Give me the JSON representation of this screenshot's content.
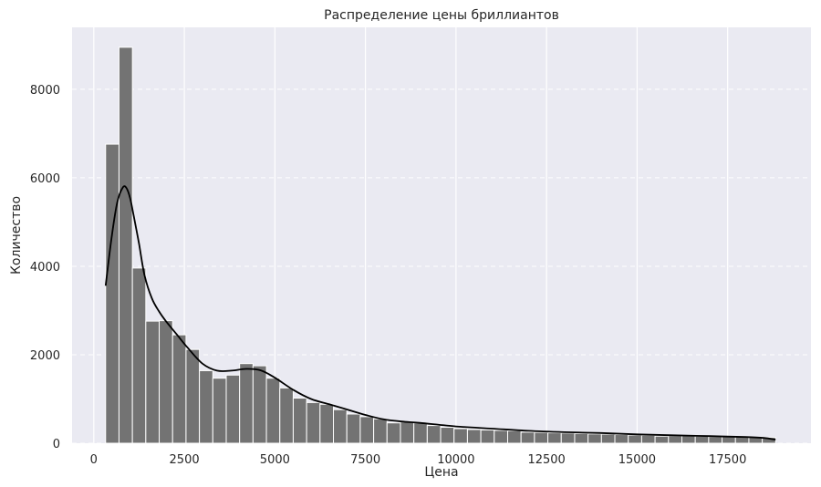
{
  "chart_data": {
    "type": "histogram",
    "title": "Распределение цены бриллиантов",
    "xlabel": "Цена",
    "ylabel": "Количество",
    "xlim": [
      -600,
      19800
    ],
    "ylim": [
      0,
      9400
    ],
    "xticks": [
      0,
      2500,
      5000,
      7500,
      10000,
      12500,
      15000,
      17500
    ],
    "yticks": [
      0,
      2000,
      4000,
      6000,
      8000
    ],
    "grid": true,
    "legend": "none",
    "bin_start": 326,
    "bin_width": 370,
    "counts": [
      6760,
      8950,
      3960,
      2760,
      2770,
      2450,
      2120,
      1640,
      1470,
      1540,
      1800,
      1750,
      1470,
      1250,
      1020,
      920,
      880,
      760,
      660,
      600,
      550,
      460,
      480,
      460,
      400,
      360,
      330,
      310,
      300,
      290,
      280,
      250,
      245,
      235,
      230,
      220,
      210,
      205,
      195,
      185,
      180,
      160,
      170,
      165,
      160,
      150,
      150,
      145,
      140,
      130
    ],
    "kde": {
      "x": [
        326,
        500,
        650,
        800,
        900,
        1000,
        1100,
        1250,
        1400,
        1600,
        1800,
        2000,
        2300,
        2600,
        3000,
        3400,
        3800,
        4200,
        4600,
        5000,
        5500,
        6000,
        6500,
        7000,
        7500,
        8000,
        8500,
        9000,
        10000,
        11000,
        12000,
        13000,
        14000,
        15000,
        16000,
        17000,
        18000,
        18500,
        18823
      ],
      "y": [
        3560,
        4700,
        5450,
        5780,
        5770,
        5550,
        5150,
        4500,
        3800,
        3280,
        2980,
        2750,
        2450,
        2150,
        1800,
        1640,
        1640,
        1680,
        1650,
        1480,
        1210,
        1000,
        880,
        760,
        640,
        540,
        490,
        460,
        380,
        330,
        280,
        250,
        230,
        200,
        180,
        160,
        140,
        120,
        80
      ]
    },
    "colors": {
      "background": "#eaeaf2",
      "bar_fill": "#737373",
      "bar_edge": "#ffffff",
      "kde_line": "#000000",
      "grid": "#ffffff"
    }
  }
}
